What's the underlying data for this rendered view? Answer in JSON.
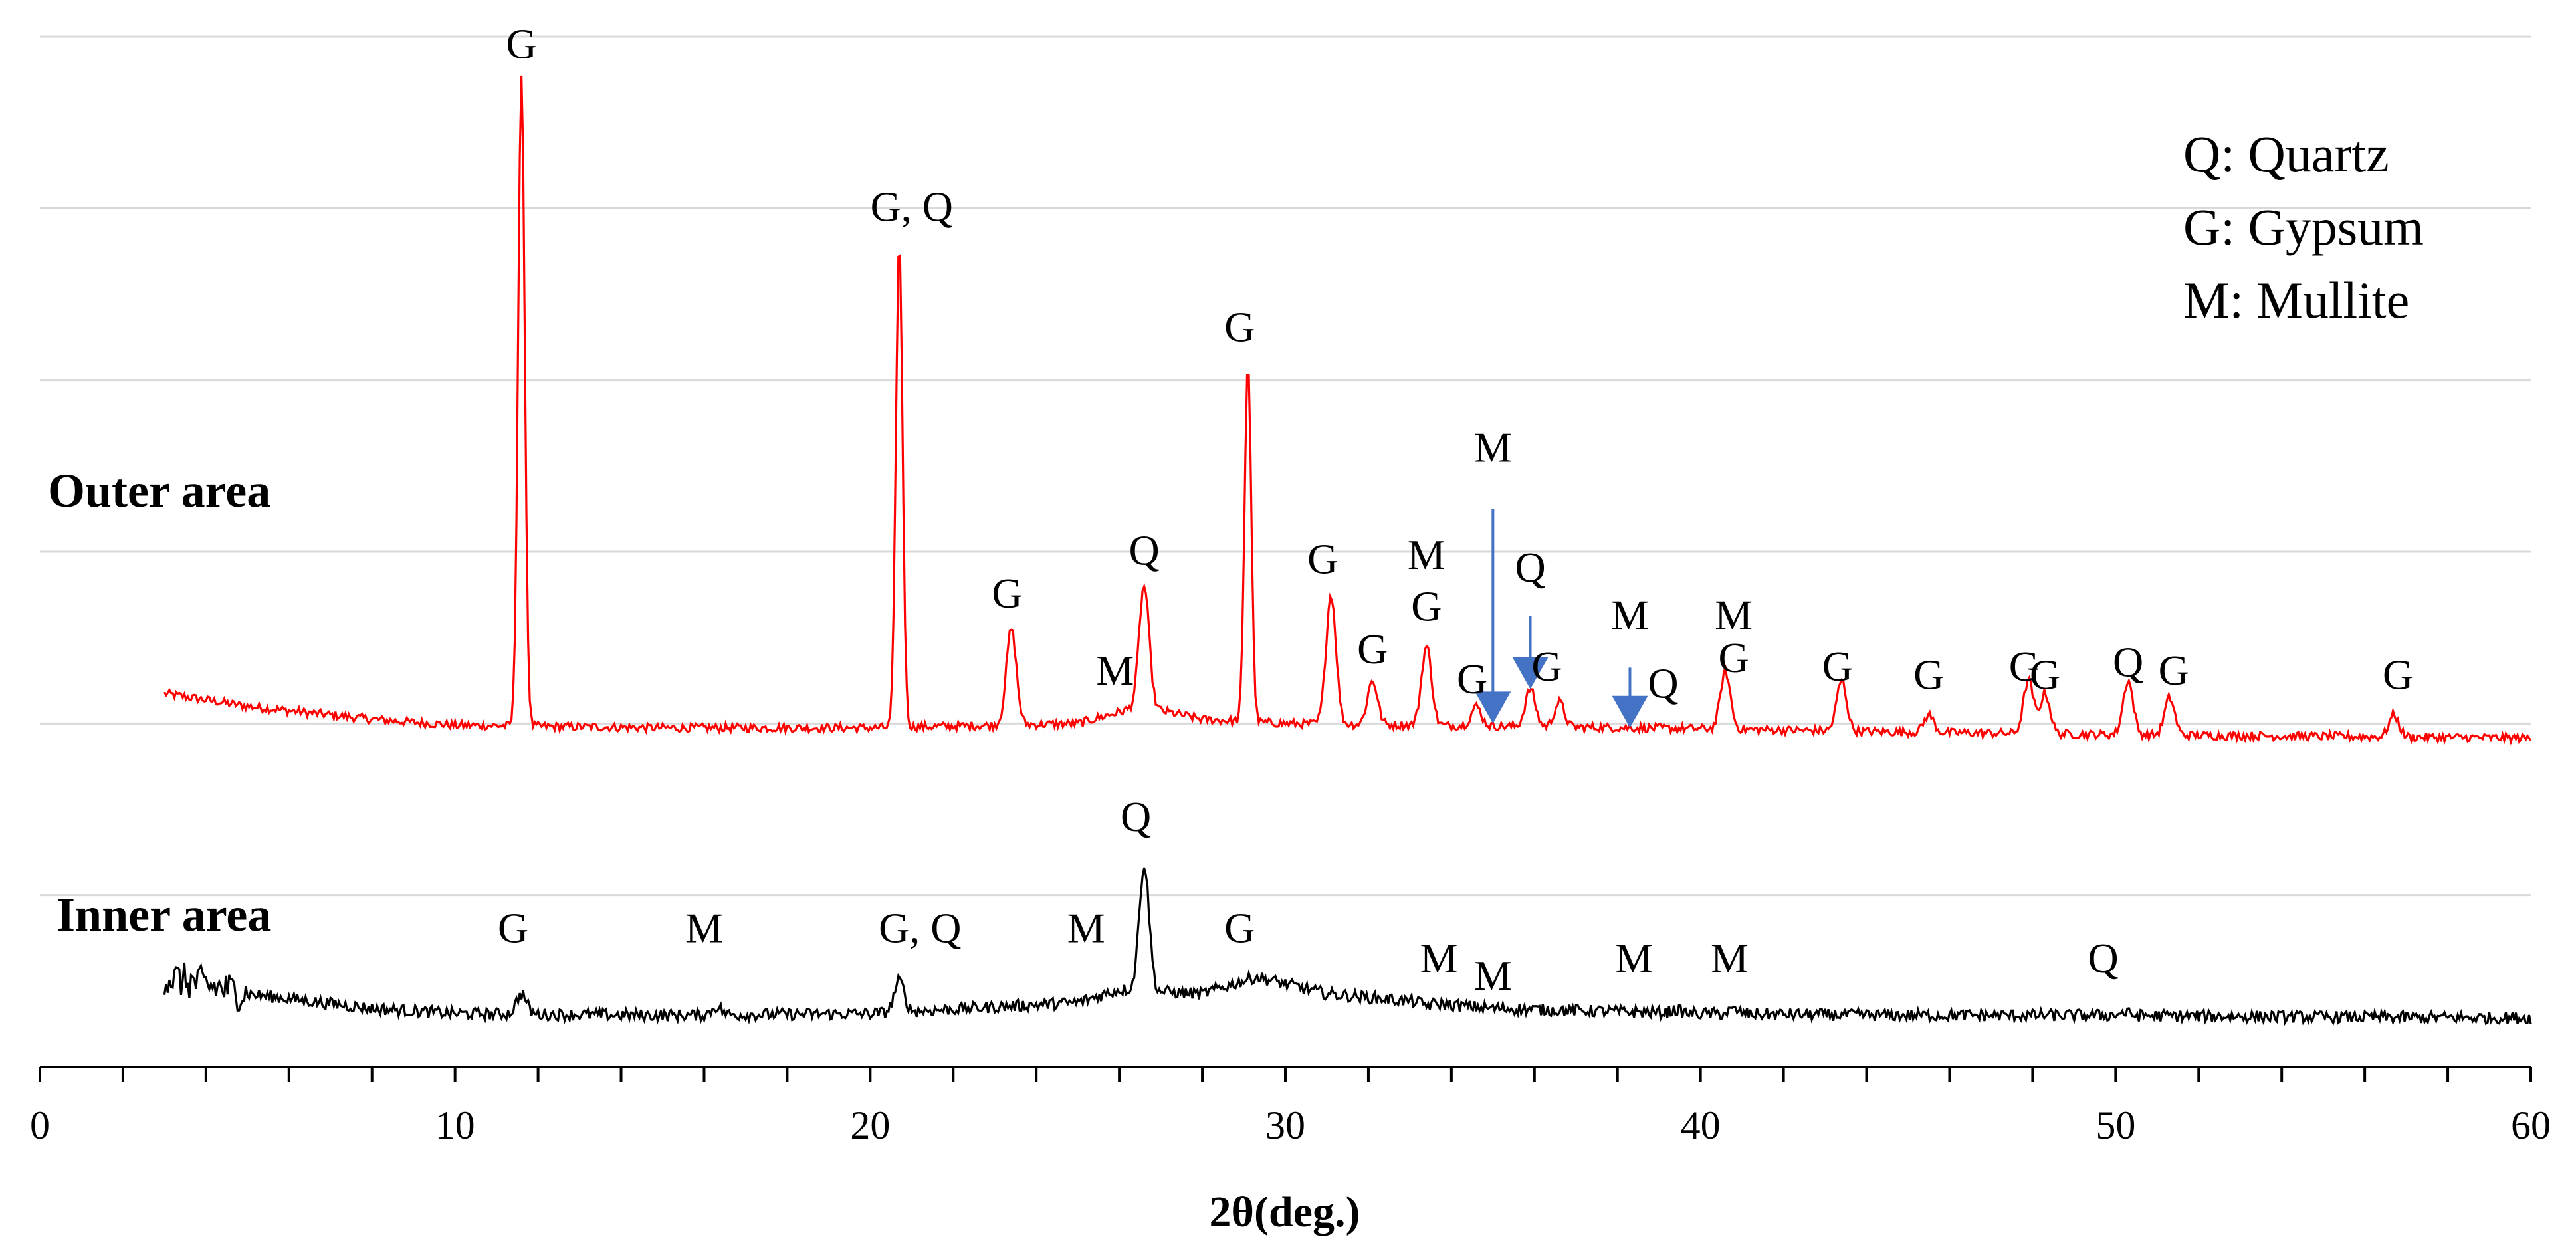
{
  "chart_data": {
    "type": "line",
    "title": "",
    "xlabel": "2θ(deg.)",
    "ylabel": "",
    "xlim": [
      0,
      60
    ],
    "ylim": [
      0,
      12
    ],
    "xticks": [
      0,
      10,
      20,
      30,
      40,
      50,
      60
    ],
    "grid": true,
    "legend": {
      "position": "top-right",
      "entries": [
        "Q: Quartz",
        "G: Gypsum",
        "M: Mullite"
      ]
    },
    "series": [
      {
        "name": "Outer area",
        "color": "#ff0000",
        "baseline": [
          [
            3,
            4.35
          ],
          [
            5,
            4.2
          ],
          [
            8,
            4.05
          ],
          [
            10,
            3.98
          ],
          [
            15,
            3.95
          ],
          [
            20,
            3.95
          ],
          [
            25,
            4.0
          ],
          [
            26.5,
            4.2
          ],
          [
            28,
            4.05
          ],
          [
            30,
            4.0
          ],
          [
            35,
            3.97
          ],
          [
            40,
            3.94
          ],
          [
            45,
            3.9
          ],
          [
            50,
            3.87
          ],
          [
            55,
            3.85
          ],
          [
            60,
            3.83
          ]
        ],
        "peaks": [
          {
            "x": 11.6,
            "y": 11.5
          },
          {
            "x": 20.7,
            "y": 9.6
          },
          {
            "x": 23.4,
            "y": 5.1
          },
          {
            "x": 26.6,
            "y": 5.6
          },
          {
            "x": 29.1,
            "y": 8.2
          },
          {
            "x": 31.1,
            "y": 5.5
          },
          {
            "x": 32.1,
            "y": 4.5
          },
          {
            "x": 33.4,
            "y": 4.9
          },
          {
            "x": 34.6,
            "y": 4.2
          },
          {
            "x": 35.9,
            "y": 4.4
          },
          {
            "x": 36.6,
            "y": 4.25
          },
          {
            "x": 40.6,
            "y": 4.6
          },
          {
            "x": 43.4,
            "y": 4.5
          },
          {
            "x": 45.5,
            "y": 4.1
          },
          {
            "x": 47.9,
            "y": 4.5
          },
          {
            "x": 48.3,
            "y": 4.35
          },
          {
            "x": 50.3,
            "y": 4.5
          },
          {
            "x": 51.3,
            "y": 4.3
          },
          {
            "x": 56.7,
            "y": 4.1
          }
        ]
      },
      {
        "name": "Inner area",
        "color": "#000000",
        "baseline": [
          [
            3,
            1.05
          ],
          [
            5,
            0.85
          ],
          [
            8,
            0.68
          ],
          [
            10,
            0.62
          ],
          [
            15,
            0.6
          ],
          [
            20,
            0.62
          ],
          [
            25,
            0.75
          ],
          [
            26,
            0.9
          ],
          [
            28,
            0.85
          ],
          [
            29.3,
            1.05
          ],
          [
            31,
            0.85
          ],
          [
            35,
            0.68
          ],
          [
            40,
            0.62
          ],
          [
            45,
            0.6
          ],
          [
            50,
            0.6
          ],
          [
            55,
            0.58
          ],
          [
            60,
            0.57
          ]
        ],
        "peaks": [
          {
            "x": 11.6,
            "y": 0.85
          },
          {
            "x": 16.3,
            "y": 0.7
          },
          {
            "x": 20.7,
            "y": 1.0
          },
          {
            "x": 26.6,
            "y": 2.35
          },
          {
            "x": 33.4,
            "y": 0.72
          },
          {
            "x": 35.3,
            "y": 0.68
          },
          {
            "x": 39.4,
            "y": 0.66
          },
          {
            "x": 40.8,
            "y": 0.66
          },
          {
            "x": 50.2,
            "y": 0.63
          }
        ]
      }
    ],
    "series_labels": [
      "Outer area",
      "Inner area"
    ],
    "annotations": [
      {
        "text": "G",
        "x": 11.6,
        "y": 11.75
      },
      {
        "text": "G, Q",
        "x": 21.0,
        "y": 9.85
      },
      {
        "text": "G",
        "x": 23.3,
        "y": 5.35
      },
      {
        "text": "M",
        "x": 25.9,
        "y": 4.45
      },
      {
        "text": "Q",
        "x": 26.6,
        "y": 5.85
      },
      {
        "text": "G",
        "x": 28.9,
        "y": 8.45
      },
      {
        "text": "G",
        "x": 30.9,
        "y": 5.75
      },
      {
        "text": "M",
        "x": 33.4,
        "y": 5.8
      },
      {
        "text": "G",
        "x": 33.4,
        "y": 5.2
      },
      {
        "text": "G",
        "x": 32.1,
        "y": 4.7
      },
      {
        "text": "G",
        "x": 34.5,
        "y": 4.35
      },
      {
        "text": "M",
        "x": 35.0,
        "y": 7.05
      },
      {
        "text": "Q",
        "x": 35.9,
        "y": 5.65
      },
      {
        "text": "G",
        "x": 36.3,
        "y": 4.5
      },
      {
        "text": "M",
        "x": 38.3,
        "y": 5.1
      },
      {
        "text": "Q",
        "x": 39.1,
        "y": 4.3
      },
      {
        "text": "M",
        "x": 40.8,
        "y": 5.1
      },
      {
        "text": "G",
        "x": 40.8,
        "y": 4.6
      },
      {
        "text": "G",
        "x": 43.3,
        "y": 4.5
      },
      {
        "text": "G",
        "x": 45.5,
        "y": 4.4
      },
      {
        "text": "G",
        "x": 47.8,
        "y": 4.5
      },
      {
        "text": "G",
        "x": 48.3,
        "y": 4.4
      },
      {
        "text": "Q",
        "x": 50.3,
        "y": 4.55
      },
      {
        "text": "G",
        "x": 51.4,
        "y": 4.45
      },
      {
        "text": "G",
        "x": 56.8,
        "y": 4.4
      },
      {
        "text": "G",
        "x": 11.4,
        "y": 1.45
      },
      {
        "text": "M",
        "x": 16.0,
        "y": 1.45
      },
      {
        "text": "G, Q",
        "x": 21.2,
        "y": 1.45
      },
      {
        "text": "M",
        "x": 25.2,
        "y": 1.45
      },
      {
        "text": "Q",
        "x": 26.4,
        "y": 2.75
      },
      {
        "text": "G",
        "x": 28.9,
        "y": 1.45
      },
      {
        "text": "M",
        "x": 33.7,
        "y": 1.1
      },
      {
        "text": "M",
        "x": 35.0,
        "y": 0.9
      },
      {
        "text": "M",
        "x": 38.4,
        "y": 1.1
      },
      {
        "text": "M",
        "x": 40.7,
        "y": 1.1
      },
      {
        "text": "Q",
        "x": 49.7,
        "y": 1.1
      }
    ],
    "arrows": [
      {
        "label": "M",
        "x": 35.0,
        "y_from": 6.5,
        "y_to": 4.0,
        "color": "#4472c4"
      },
      {
        "label": "Q",
        "x": 35.9,
        "y_from": 5.25,
        "y_to": 4.4,
        "color": "#4472c4"
      },
      {
        "label": "M",
        "x": 38.3,
        "y_from": 4.65,
        "y_to": 3.95,
        "color": "#4472c4"
      }
    ]
  }
}
